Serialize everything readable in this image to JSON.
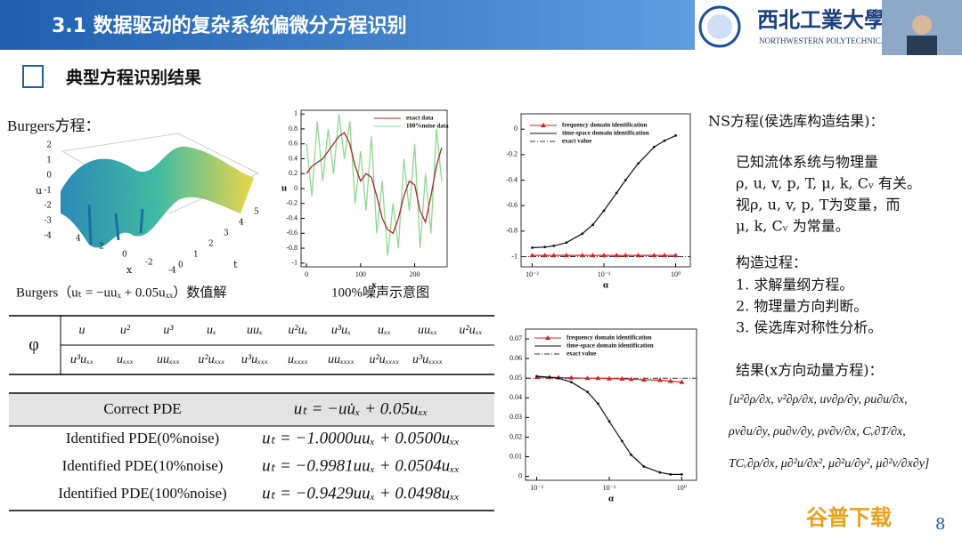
{
  "header": {
    "title": "3.1 数据驱动的复杂系统偏微分方程识别",
    "logo_cn": "西北工業大學",
    "logo_en": "NORTHWESTERN POLYTECHNICAL"
  },
  "section_title": "典型方程识别结果",
  "burgers": {
    "label": "Burgers方程：",
    "caption": "Burgers（uₜ = −uuₓ + 0.05uₓₓ）数值解",
    "surface": {
      "zlabel": "u",
      "zticks": [
        2,
        1,
        0,
        -1,
        -2,
        -3,
        -4
      ],
      "xlabel": "x",
      "xticks": [
        4,
        2,
        0,
        -2,
        -4
      ],
      "tlabel": "t",
      "tticks": [
        0,
        1,
        2,
        3,
        4,
        5
      ]
    }
  },
  "noise_plot": {
    "caption": "100%噪声示意图",
    "xlabel": "x",
    "ylabel": "u",
    "xlim": [
      -10,
      260
    ],
    "ylim": [
      -1.05,
      1.05
    ],
    "xticks": [
      0,
      100,
      200
    ],
    "yticks": [
      -1,
      -0.8,
      -0.6,
      -0.4,
      -0.2,
      0,
      0.2,
      0.4,
      0.6,
      0.8,
      1
    ],
    "x": [
      0,
      10,
      20,
      30,
      40,
      50,
      60,
      70,
      80,
      90,
      100,
      110,
      120,
      130,
      140,
      150,
      160,
      170,
      180,
      190,
      200,
      210,
      220,
      230,
      240,
      250
    ],
    "series": [
      {
        "name": "exact data",
        "color": "#a52a2a",
        "values": [
          0.2,
          0.3,
          0.35,
          0.4,
          0.5,
          0.6,
          0.7,
          0.75,
          0.6,
          0.3,
          0.1,
          0.2,
          0.15,
          -0.1,
          -0.4,
          -0.55,
          -0.6,
          -0.4,
          -0.1,
          0.1,
          0.05,
          -0.3,
          -0.45,
          -0.1,
          0.3,
          0.55
        ]
      },
      {
        "name": "100%noise data",
        "color": "#8fd88f",
        "values": [
          0.6,
          -0.1,
          0.9,
          0.1,
          0.8,
          0.2,
          1.0,
          0.4,
          0.9,
          -0.2,
          0.5,
          -0.3,
          0.7,
          -0.6,
          0.1,
          -0.9,
          -0.2,
          -0.8,
          0.4,
          -0.3,
          0.6,
          -0.8,
          0.2,
          -0.6,
          0.8,
          0.1
        ]
      }
    ]
  },
  "alpha_plots": [
    {
      "xlabel": "α",
      "xlog": true,
      "xlim": [
        0.007,
        1.6
      ],
      "ylim": [
        -1.08,
        0.12
      ],
      "xticks": [
        {
          "value": 0.01,
          "label": "10⁻²"
        },
        {
          "value": 0.1,
          "label": "10⁻¹"
        },
        {
          "value": 1,
          "label": "10⁰"
        }
      ],
      "yticks": [
        -1,
        -0.8,
        -0.6,
        -0.4,
        -0.2,
        0
      ],
      "x": [
        0.01,
        0.015,
        0.02,
        0.03,
        0.05,
        0.07,
        0.1,
        0.15,
        0.2,
        0.3,
        0.5,
        0.7,
        1
      ],
      "series": [
        {
          "name": "frequency domain identification",
          "color": "#d62020",
          "marker": "triangle",
          "values": [
            -0.99,
            -0.99,
            -0.99,
            -0.99,
            -0.99,
            -0.99,
            -0.99,
            -0.99,
            -0.99,
            -0.99,
            -0.99,
            -0.99,
            -0.99
          ]
        },
        {
          "name": "time-space domain identification",
          "color": "#111111",
          "marker": "dot",
          "values": [
            -0.93,
            -0.925,
            -0.915,
            -0.89,
            -0.82,
            -0.75,
            -0.64,
            -0.5,
            -0.4,
            -0.27,
            -0.14,
            -0.09,
            -0.05
          ]
        }
      ],
      "exact": {
        "name": "exact value",
        "value": -1
      }
    },
    {
      "xlabel": "α",
      "xlog": true,
      "xlim": [
        0.007,
        1.6
      ],
      "ylim": [
        -0.002,
        0.075
      ],
      "xticks": [
        {
          "value": 0.01,
          "label": "10⁻²"
        },
        {
          "value": 0.1,
          "label": "10⁻¹"
        },
        {
          "value": 1,
          "label": "10⁰"
        }
      ],
      "yticks": [
        0,
        0.01,
        0.02,
        0.03,
        0.04,
        0.05,
        0.06,
        0.07
      ],
      "x": [
        0.01,
        0.015,
        0.02,
        0.03,
        0.05,
        0.07,
        0.1,
        0.15,
        0.2,
        0.3,
        0.5,
        0.7,
        1
      ],
      "series": [
        {
          "name": "frequency domain identification",
          "color": "#d62020",
          "marker": "triangle",
          "values": [
            0.0505,
            0.0505,
            0.0503,
            0.0502,
            0.05,
            0.05,
            0.0498,
            0.0497,
            0.0495,
            0.0492,
            0.049,
            0.0485,
            0.048
          ]
        },
        {
          "name": "time-space domain identification",
          "color": "#111111",
          "marker": "dot",
          "values": [
            0.051,
            0.0505,
            0.05,
            0.048,
            0.043,
            0.037,
            0.028,
            0.018,
            0.011,
            0.005,
            0.002,
            0.001,
            0.001
          ]
        }
      ],
      "exact": {
        "name": "exact value",
        "value": 0.05
      }
    }
  ],
  "library_table": {
    "symbol": "φ",
    "rows": [
      [
        "u",
        "u²",
        "u³",
        "uₓ",
        "uuₓ",
        "u²uₓ",
        "u³uₓ",
        "uₓₓ",
        "uuₓₓ",
        "u²uₓₓ"
      ],
      [
        "u³uₓₓ",
        "uₓₓₓ",
        "uuₓₓₓ",
        "u²uₓₓₓ",
        "u³uₓₓₓ",
        "uₓₓₓₓ",
        "uuₓₓₓₓ",
        "u²uₓₓₓₓ",
        "u³uₓₓₓₓ"
      ]
    ]
  },
  "pde_table": {
    "header": [
      "Correct PDE",
      "uₜ = −uu̇ₓ + 0.05uₓₓ"
    ],
    "rows": [
      [
        "Identified PDE(0%noise)",
        "uₜ = −1.0000uuₓ + 0.0500uₓₓ"
      ],
      [
        "Identified PDE(10%noise)",
        "uₜ = −0.9981uuₓ + 0.0504uₓₓ"
      ],
      [
        "Identified PDE(100%noise)",
        "uₜ = −0.9429uuₓ + 0.0498uₓₓ"
      ]
    ]
  },
  "ns": {
    "title": "NS方程(侯选库构造结果)：",
    "intro": [
      "已知流体系统与物理量",
      "ρ, u, v, p, T, μ, k, Cᵥ 有关。",
      "视ρ, u, v, p, T为变量，而",
      "μ, k, Cᵥ 为常量。"
    ],
    "process_title": "构造过程：",
    "steps": [
      "1. 求解量纲方程。",
      "2. 物理量方向判断。",
      "3. 侯选库对称性分析。"
    ],
    "result_title": "结果(x方向动量方程)：",
    "result": [
      "[u²∂ρ/∂x, v²∂ρ/∂x, uv∂ρ/∂y, ρu∂u/∂x,",
      "ρv∂u/∂y, ρu∂v/∂y, ρv∂v/∂x, Cᵥ∂T/∂x,",
      "TCᵥ∂ρ/∂x, μ∂²u/∂x², μ∂²u/∂y², μ∂²v/∂x∂y]"
    ]
  },
  "page_number": "8",
  "watermark": "谷普下载"
}
